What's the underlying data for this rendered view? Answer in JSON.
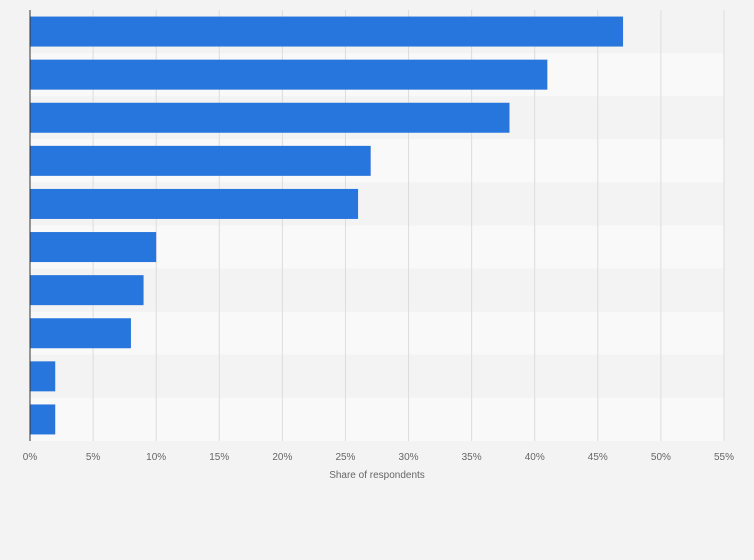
{
  "chart_data": {
    "type": "bar",
    "orientation": "horizontal",
    "categories": [
      "",
      "",
      "",
      "",
      "",
      "",
      "",
      "",
      "",
      ""
    ],
    "values": [
      47,
      41,
      38,
      27,
      26,
      10,
      9,
      8,
      2,
      2
    ],
    "title": "",
    "xlabel": "Share of respondents",
    "ylabel": "",
    "xlim": [
      0,
      55
    ],
    "x_ticks": [
      "0%",
      "5%",
      "10%",
      "15%",
      "20%",
      "25%",
      "30%",
      "35%",
      "40%",
      "45%",
      "50%",
      "55%"
    ],
    "grid": true,
    "bar_color": "#2776dd",
    "band_colors": [
      "#f3f3f3",
      "#f9f9f9"
    ]
  }
}
